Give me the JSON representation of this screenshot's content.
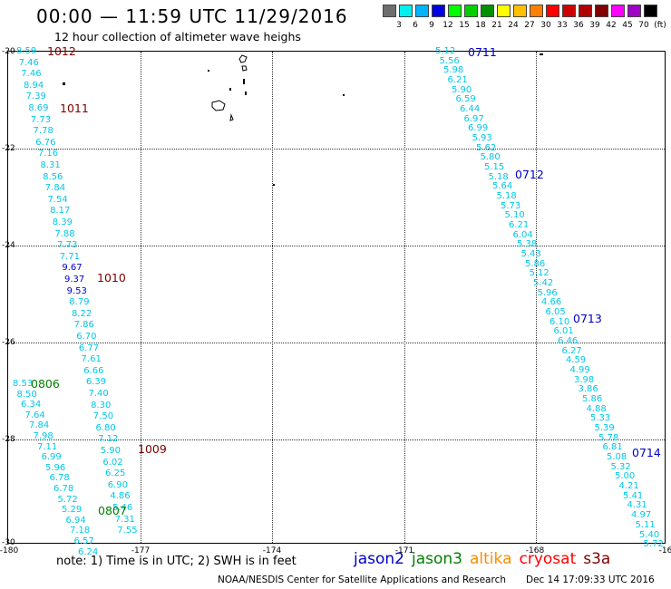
{
  "header": {
    "title": "00:00 — 11:59 UTC 11/29/2016",
    "subtitle": "12 hour collection of altimeter wave heighs"
  },
  "legend": {
    "colors": [
      "#6e6e6e",
      "#00f0f0",
      "#00b4ff",
      "#0000e0",
      "#00ff00",
      "#00d000",
      "#009000",
      "#ffff00",
      "#ffc000",
      "#ff8000",
      "#ff0000",
      "#d00000",
      "#b00000",
      "#800000",
      "#ff00ff",
      "#a000c8",
      "#000000"
    ],
    "labels": [
      "3",
      "6",
      "9",
      "12",
      "15",
      "18",
      "21",
      "24",
      "27",
      "30",
      "33",
      "36",
      "39",
      "42",
      "45",
      "70",
      "(ft)"
    ]
  },
  "axes": {
    "lat_labels": [
      "-20",
      "-22",
      "-24",
      "-26",
      "-28",
      "-30"
    ],
    "lon_labels": [
      "-180",
      "-177",
      "-174",
      "-171",
      "-168",
      "-16"
    ]
  },
  "colors": {
    "jason2": "#0000c8",
    "jason3": "#008000",
    "altika": "#ff8c00",
    "cryosat": "#ff0000",
    "s3a": "#800000",
    "cyan": "#00c8e6"
  },
  "tracks": {
    "west_a": [
      "8.59",
      "7.46",
      "7.46",
      "8.94",
      "7.39",
      "8.69",
      "7.73",
      "7.78",
      "6.76",
      "7.16",
      "8.31",
      "8.56",
      "7.84",
      "7.54",
      "8.17",
      "8.39",
      "7.88",
      "7.73",
      "7.71",
      "9.67",
      "9.37",
      "9.53",
      "8.79",
      "8.22",
      "7.86",
      "6.70",
      "6.77",
      "7.61",
      "6.66",
      "6.39",
      "7.40",
      "8.30",
      "7.50",
      "6.80",
      "7.12",
      "5.90",
      "6.02",
      "6.25",
      "6.90",
      "4.86",
      "5.46",
      "7.31",
      "7.55"
    ],
    "west_b": [
      "8.53",
      "8.50",
      "6.34",
      "7.64",
      "7.84",
      "7.98",
      "7.11",
      "6.99",
      "5.96",
      "6.78",
      "6.78",
      "5.72",
      "5.29",
      "6.94",
      "7.18",
      "6.57",
      "6.24"
    ],
    "east": [
      "5.12",
      "5.56",
      "5.98",
      "6.21",
      "5.90",
      "6.59",
      "6.44",
      "6.97",
      "6.99",
      "5.93",
      "5.62",
      "5.80",
      "5.15",
      "5.18",
      "5.64",
      "5.18",
      "5.73",
      "5.10",
      "6.21",
      "6.04",
      "5.38",
      "5.43",
      "5.86",
      "5.12",
      "5.42",
      "5.96",
      "4.66",
      "6.05",
      "6.10",
      "6.01",
      "6.46",
      "6.27",
      "4.59",
      "4.99",
      "3.98",
      "3.86",
      "5.86",
      "4.88",
      "5.33",
      "5.39",
      "5.78",
      "6.81",
      "5.08",
      "5.32",
      "5.00",
      "4.21",
      "5.41",
      "4.31",
      "4.97",
      "5.11",
      "5.40",
      "5.72"
    ]
  },
  "time_labels": [
    {
      "text": "1012",
      "sat": "s3a"
    },
    {
      "text": "1011",
      "sat": "s3a"
    },
    {
      "text": "1010",
      "sat": "s3a"
    },
    {
      "text": "1009",
      "sat": "s3a"
    },
    {
      "text": "0806",
      "sat": "jason3"
    },
    {
      "text": "0807",
      "sat": "jason3"
    },
    {
      "text": "0711",
      "sat": "jason2"
    },
    {
      "text": "0712",
      "sat": "jason2"
    },
    {
      "text": "0713",
      "sat": "jason2"
    },
    {
      "text": "0714",
      "sat": "jason2"
    }
  ],
  "footer": {
    "note": "note:  1) Time is in UTC;  2) SWH is in feet",
    "satellites": [
      "jason2",
      "jason3",
      "altika",
      "cryosat",
      "s3a"
    ],
    "credit": "NOAA/NESDIS Center for Satellite Applications and Research",
    "timestamp": "Dec 14 17:09:33 UTC 2016"
  }
}
